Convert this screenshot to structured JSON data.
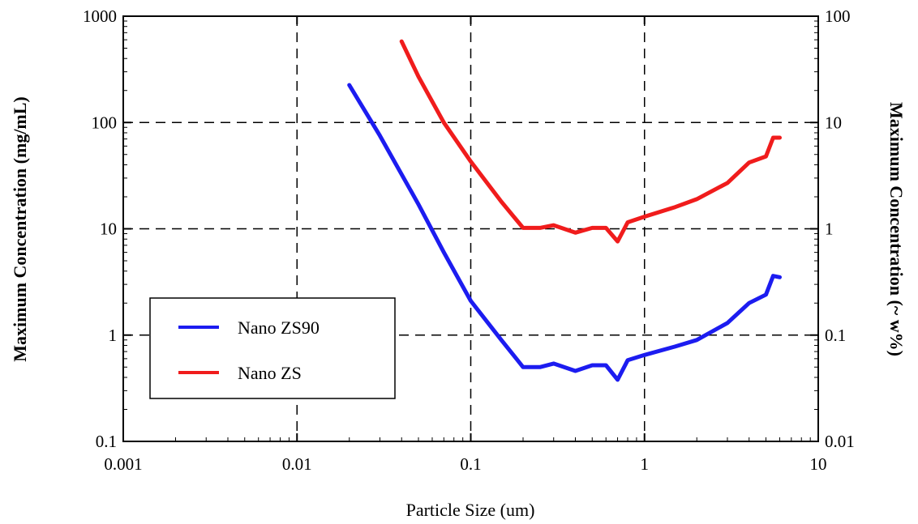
{
  "chart_data": {
    "type": "line",
    "title": "",
    "xlabel": "Particle Size (um)",
    "ylabel": "Maximum Concentration (mg/mL)",
    "y2label": "Maximum Concentration (~ w%)",
    "x_scale": "log",
    "y_scale": "log",
    "xlim": [
      0.001,
      10
    ],
    "ylim": [
      0.1,
      1000
    ],
    "y2lim": [
      0.01,
      100
    ],
    "x_ticks": [
      "0.001",
      "0.01",
      "0.1",
      "1",
      "10"
    ],
    "y_ticks": [
      "0.1",
      "1",
      "10",
      "100",
      "1000"
    ],
    "y2_ticks": [
      "0.01",
      "0.1",
      "1",
      "10",
      "100"
    ],
    "grid": "dashed at decades",
    "legend_position": "lower-left",
    "series": [
      {
        "name": "Nano ZS90",
        "color": "#1c1cf0",
        "points": [
          [
            0.02,
            225
          ],
          [
            0.03,
            75
          ],
          [
            0.05,
            17
          ],
          [
            0.07,
            6
          ],
          [
            0.1,
            2.1
          ],
          [
            0.15,
            0.9
          ],
          [
            0.2,
            0.5
          ],
          [
            0.25,
            0.5
          ],
          [
            0.3,
            0.54
          ],
          [
            0.4,
            0.46
          ],
          [
            0.5,
            0.52
          ],
          [
            0.6,
            0.52
          ],
          [
            0.7,
            0.38
          ],
          [
            0.8,
            0.58
          ],
          [
            1,
            0.65
          ],
          [
            1.5,
            0.78
          ],
          [
            2,
            0.9
          ],
          [
            3,
            1.3
          ],
          [
            4,
            2.0
          ],
          [
            5,
            2.4
          ],
          [
            5.5,
            3.6
          ],
          [
            6,
            3.5
          ]
        ]
      },
      {
        "name": "Nano ZS",
        "color": "#f01c1c",
        "points": [
          [
            0.04,
            580
          ],
          [
            0.05,
            270
          ],
          [
            0.07,
            100
          ],
          [
            0.1,
            43
          ],
          [
            0.15,
            18
          ],
          [
            0.2,
            10.2
          ],
          [
            0.25,
            10.2
          ],
          [
            0.3,
            10.8
          ],
          [
            0.4,
            9.2
          ],
          [
            0.5,
            10.2
          ],
          [
            0.6,
            10.2
          ],
          [
            0.7,
            7.6
          ],
          [
            0.8,
            11.5
          ],
          [
            1,
            13
          ],
          [
            1.5,
            16
          ],
          [
            2,
            19
          ],
          [
            3,
            27
          ],
          [
            4,
            42
          ],
          [
            5,
            48
          ],
          [
            5.5,
            72
          ],
          [
            6,
            72
          ]
        ]
      }
    ]
  }
}
